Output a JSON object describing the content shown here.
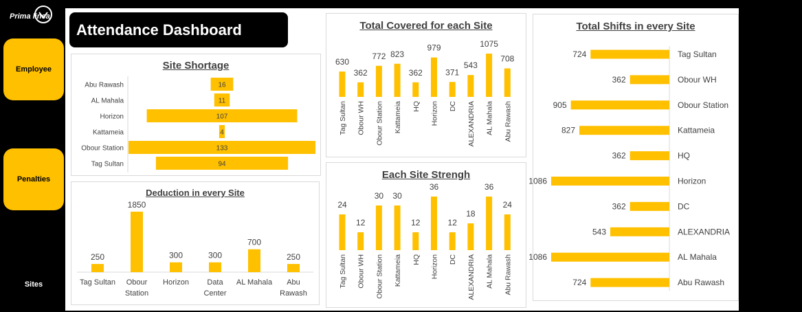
{
  "logo": {
    "text": "Prima linea"
  },
  "sidebar": {
    "employee_label": "Employee",
    "penalties_label": "Penalties",
    "sites_label": "Sites"
  },
  "header": {
    "title": "Attendance Dashboard"
  },
  "colors": {
    "accent": "#ffc000",
    "text": "#404040"
  },
  "chart_data": [
    {
      "id": "site_shortage",
      "type": "bar",
      "orientation": "horizontal",
      "title": "Site Shortage",
      "categories": [
        "Abu Rawash",
        "AL Mahala",
        "Horizon",
        "Kattameia",
        "Obour Station",
        "Tag Sultan"
      ],
      "values": [
        16,
        11,
        107,
        4,
        133,
        94
      ],
      "labels": [
        "16",
        "11",
        "107",
        "4",
        "133",
        "94"
      ]
    },
    {
      "id": "deduction",
      "type": "bar",
      "title": "Deduction in every Site",
      "categories": [
        "Tag Sultan",
        "Obour Station",
        "Horizon",
        "Data Center",
        "AL Mahala",
        "Abu Rawash"
      ],
      "values": [
        250,
        1850,
        300,
        300,
        700,
        250
      ],
      "labels": [
        "250",
        "1850",
        "300",
        "300",
        "700",
        "250"
      ]
    },
    {
      "id": "total_covered",
      "type": "bar",
      "title": "Total Covered for each Site",
      "categories": [
        "Tag Sultan",
        "Obour WH",
        "Obour Station",
        "Kattameia",
        "HQ",
        "Horizon",
        "DC",
        "ALEXANDRIA",
        "AL Mahala",
        "Abu Rawash"
      ],
      "values": [
        630,
        362,
        772,
        823,
        362,
        979,
        371,
        543,
        1075,
        708
      ],
      "labels": [
        "630",
        "362",
        "772",
        "823",
        "362",
        "979",
        "371",
        "543",
        "1075",
        "708"
      ]
    },
    {
      "id": "strength",
      "type": "bar",
      "title": "Each Site Strengh",
      "categories": [
        "Tag Sultan",
        "Obour WH",
        "Obour Station",
        "Kattameia",
        "HQ",
        "Horizon",
        "DC",
        "ALEXANDRIA",
        "AL Mahala",
        "Abu Rawash"
      ],
      "values": [
        24,
        12,
        30,
        30,
        12,
        36,
        12,
        18,
        36,
        24
      ],
      "labels": [
        "24",
        "12",
        "30",
        "30",
        "12",
        "36",
        "12",
        "18",
        "36",
        "24"
      ]
    },
    {
      "id": "total_shifts",
      "type": "bar",
      "orientation": "horizontal",
      "title": "Total Shifts in every Site",
      "categories": [
        "Tag Sultan",
        "Obour WH",
        "Obour Station",
        "Kattameia",
        "HQ",
        "Horizon",
        "DC",
        "ALEXANDRIA",
        "AL Mahala",
        "Abu Rawash"
      ],
      "values": [
        724,
        362,
        905,
        827,
        362,
        1086,
        362,
        543,
        1086,
        724
      ],
      "labels": [
        "724",
        "362",
        "905",
        "827",
        "362",
        "1086",
        "362",
        "543",
        "1086",
        "724"
      ]
    }
  ]
}
